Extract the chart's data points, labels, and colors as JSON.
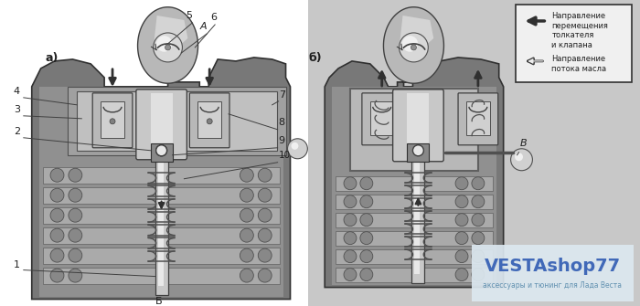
{
  "bg_color": "#c8c8c8",
  "block_outer": "#6a6a6a",
  "block_inner": "#909090",
  "block_light": "#b0b0b0",
  "head_color": "#808080",
  "lifter_color": "#d0d0d0",
  "stem_color": "#c0c0c0",
  "dark": "#303030",
  "medium": "#606060",
  "light": "#e0e0e0",
  "white_bg": "#f5f5f5",
  "cam_outer": "#c8c8c8",
  "cam_inner": "#e8e8e8",
  "cam_lobe": "#b8b8b8",
  "legend_bg": "#f2f2f2",
  "wm_blue": "#4169b8",
  "wm_light_blue": "#8aabcc",
  "wm_bg": "#dce8f0",
  "label_a": "а)",
  "label_b": "б)",
  "label_B": "B",
  "label_bot": "Б",
  "legend_text1": "Направление\nперемещения\nтолкателя\nи клапана",
  "legend_text2": "Направление\nпотока масла",
  "wm_main": "VESTAshop77",
  "wm_sub": "аксессуары и тюнинг для Лада Веста"
}
